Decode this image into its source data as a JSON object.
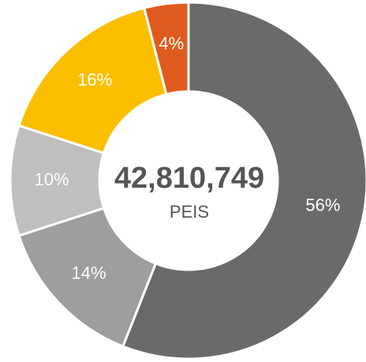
{
  "chart_data": {
    "type": "donut",
    "center_value": "42,810,749",
    "center_label": "PEIS",
    "values": [
      56,
      14,
      10,
      16,
      4
    ],
    "value_labels": [
      "56%",
      "14%",
      "10%",
      "16%",
      "4%"
    ],
    "colors": [
      "#6b6a68",
      "#a09e9c",
      "#bfbfbf",
      "#fbbf00",
      "#e05a1e"
    ]
  }
}
